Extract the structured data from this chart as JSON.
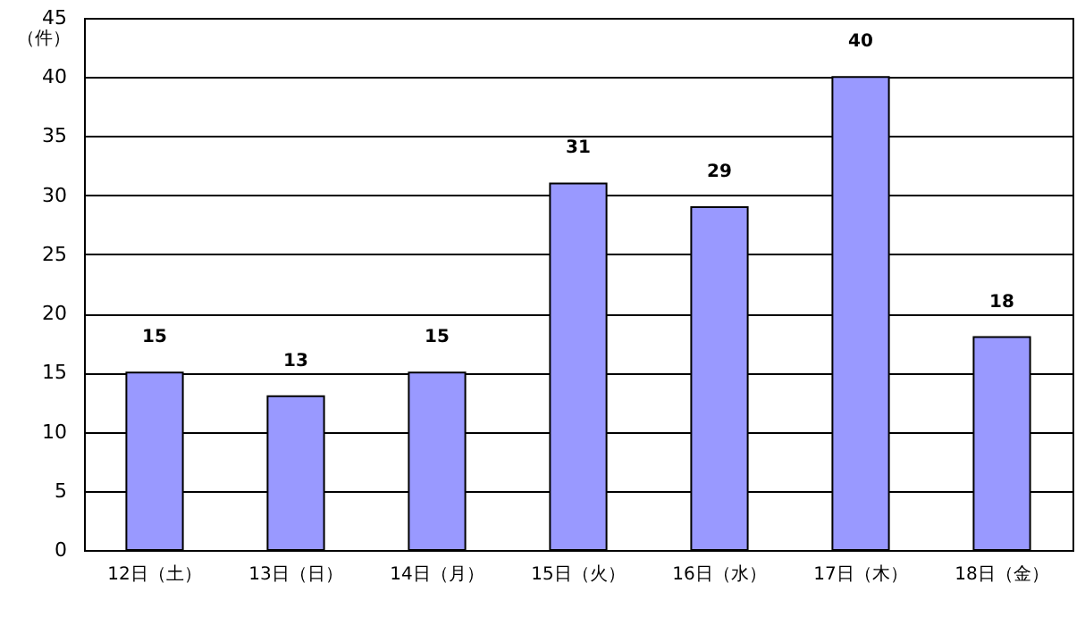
{
  "chart_data": {
    "type": "bar",
    "ylabel": "（件）",
    "categories": [
      "12日（土）",
      "13日（日）",
      "14日（月）",
      "15日（火）",
      "16日（水）",
      "17日（木）",
      "18日（金）"
    ],
    "values": [
      15,
      13,
      15,
      31,
      29,
      40,
      18
    ],
    "color": "#9999ff",
    "ylim": [
      0,
      45
    ],
    "yticks": [
      0,
      5,
      10,
      15,
      20,
      25,
      30,
      35,
      40,
      45
    ],
    "grid": "y",
    "data_labels": true
  }
}
